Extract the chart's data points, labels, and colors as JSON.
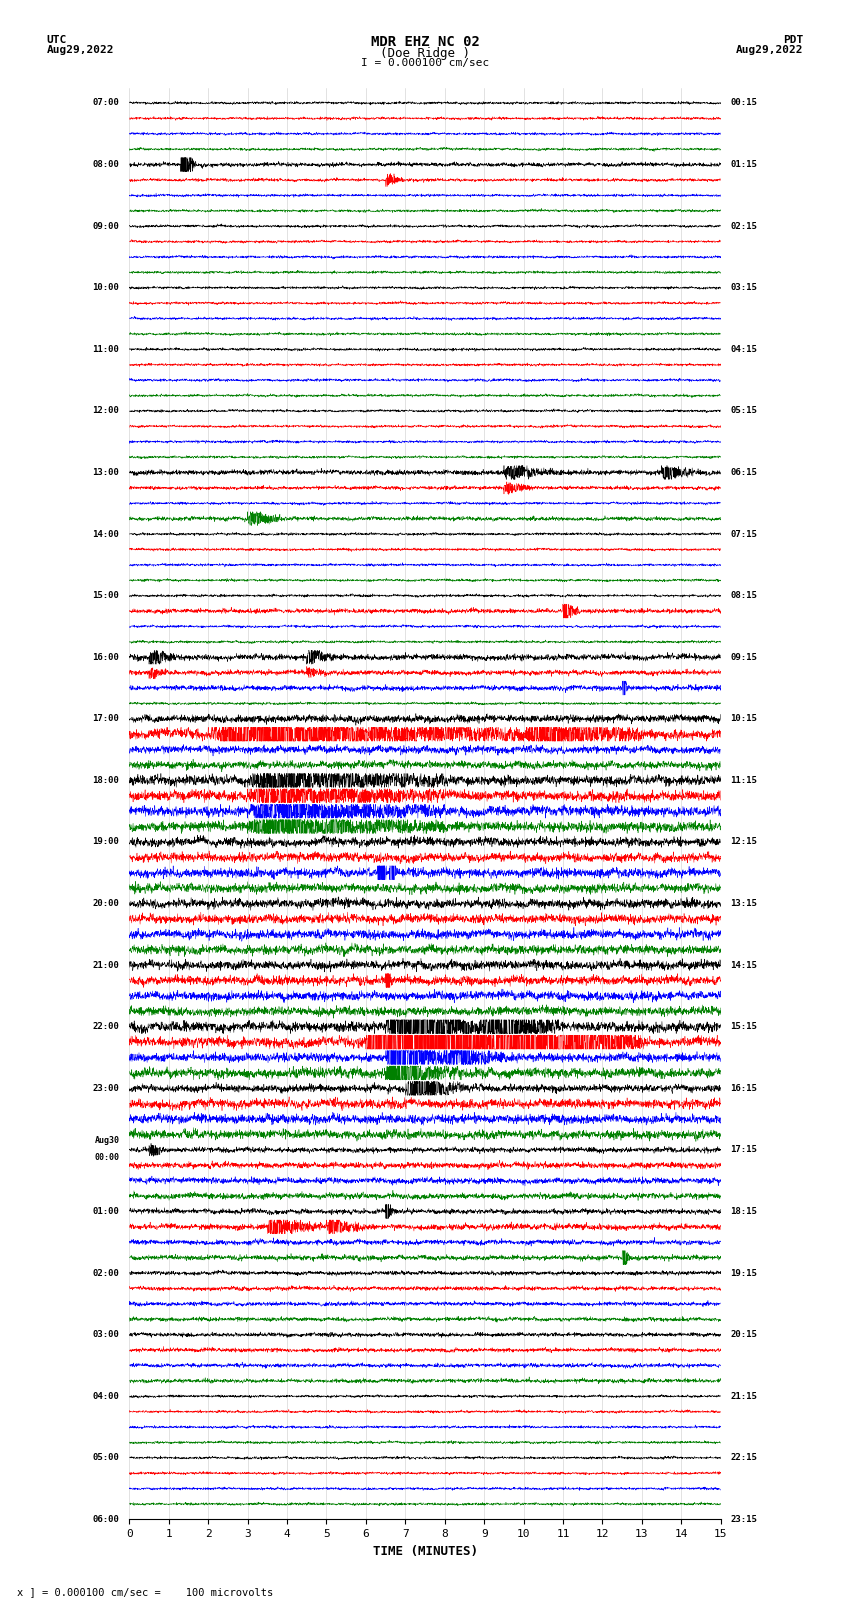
{
  "title_line1": "MDR EHZ NC 02",
  "title_line2": "(Doe Ridge )",
  "scale_text": "I = 0.000100 cm/sec",
  "utc_label": "UTC",
  "utc_date": "Aug29,2022",
  "pdt_label": "PDT",
  "pdt_date": "Aug29,2022",
  "bottom_label": "TIME (MINUTES)",
  "bottom_scale": "x ] = 0.000100 cm/sec =    100 microvolts",
  "xlim": [
    0,
    15
  ],
  "xticks": [
    0,
    1,
    2,
    3,
    4,
    5,
    6,
    7,
    8,
    9,
    10,
    11,
    12,
    13,
    14,
    15
  ],
  "left_times": [
    "07:00",
    "",
    "",
    "",
    "08:00",
    "",
    "",
    "",
    "09:00",
    "",
    "",
    "",
    "10:00",
    "",
    "",
    "",
    "11:00",
    "",
    "",
    "",
    "12:00",
    "",
    "",
    "",
    "13:00",
    "",
    "",
    "",
    "14:00",
    "",
    "",
    "",
    "15:00",
    "",
    "",
    "",
    "16:00",
    "",
    "",
    "",
    "17:00",
    "",
    "",
    "",
    "18:00",
    "",
    "",
    "",
    "19:00",
    "",
    "",
    "",
    "20:00",
    "",
    "",
    "",
    "21:00",
    "",
    "",
    "",
    "22:00",
    "",
    "",
    "",
    "23:00",
    "",
    "",
    "",
    "Aug30\n00:00",
    "",
    "",
    "",
    "01:00",
    "",
    "",
    "",
    "02:00",
    "",
    "",
    "",
    "03:00",
    "",
    "",
    "",
    "04:00",
    "",
    "",
    "",
    "05:00",
    "",
    "",
    "",
    "06:00",
    "",
    "",
    ""
  ],
  "right_times": [
    "00:15",
    "",
    "",
    "",
    "01:15",
    "",
    "",
    "",
    "02:15",
    "",
    "",
    "",
    "03:15",
    "",
    "",
    "",
    "04:15",
    "",
    "",
    "",
    "05:15",
    "",
    "",
    "",
    "06:15",
    "",
    "",
    "",
    "07:15",
    "",
    "",
    "",
    "08:15",
    "",
    "",
    "",
    "09:15",
    "",
    "",
    "",
    "10:15",
    "",
    "",
    "",
    "11:15",
    "",
    "",
    "",
    "12:15",
    "",
    "",
    "",
    "13:15",
    "",
    "",
    "",
    "14:15",
    "",
    "",
    "",
    "15:15",
    "",
    "",
    "",
    "16:15",
    "",
    "",
    "",
    "17:15",
    "",
    "",
    "",
    "18:15",
    "",
    "",
    "",
    "19:15",
    "",
    "",
    "",
    "20:15",
    "",
    "",
    "",
    "21:15",
    "",
    "",
    "",
    "22:15",
    "",
    "",
    "",
    "23:15",
    "",
    "",
    ""
  ],
  "n_traces": 92,
  "colors_cycle": [
    "black",
    "red",
    "blue",
    "green"
  ],
  "bg_color": "#ffffff",
  "grid_color": "#aaaaaa",
  "seed": 42
}
